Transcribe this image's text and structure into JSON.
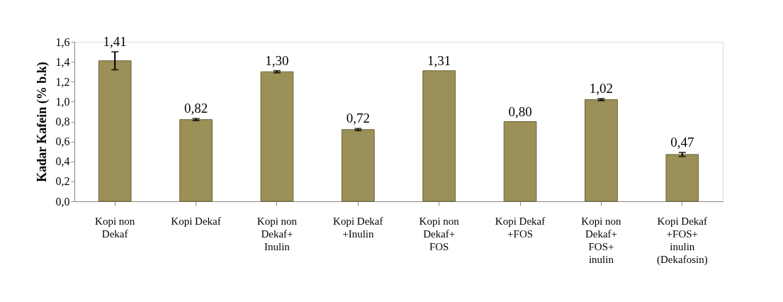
{
  "chart_data": {
    "type": "bar",
    "ylabel": "Kadar Kafein (% b.k)",
    "categories": [
      "Kopi non\nDekaf",
      "Kopi Dekaf",
      "Kopi non\nDekaf+\nInulin",
      "Kopi Dekaf\n+Inulin",
      "Kopi non\nDekaf+\nFOS",
      "Kopi Dekaf\n+FOS",
      "Kopi non\nDekaf+\nFOS+\ninulin",
      "Kopi Dekaf\n+FOS+\ninulin\n(Dekafosin)"
    ],
    "values": [
      1.41,
      0.82,
      1.3,
      0.72,
      1.31,
      0.8,
      1.02,
      0.47
    ],
    "errors": [
      0.09,
      0.01,
      0.01,
      0.01,
      null,
      null,
      0.01,
      0.02
    ],
    "value_labels": [
      "1,41",
      "0,82",
      "1,30",
      "0,72",
      "1,31",
      "0,80",
      "1,02",
      "0,47"
    ],
    "color": "#9b9057",
    "ylim": [
      0,
      1.6
    ],
    "yticks": [
      {
        "value": 0,
        "label": "0,0"
      },
      {
        "value": 0.2,
        "label": "0,2"
      },
      {
        "value": 0.4,
        "label": "0,4"
      },
      {
        "value": 0.6,
        "label": "0,6"
      },
      {
        "value": 0.8,
        "label": "0,8"
      },
      {
        "value": 1.0,
        "label": "1,0"
      },
      {
        "value": 1.2,
        "label": "1,2"
      },
      {
        "value": 1.4,
        "label": "1,4"
      },
      {
        "value": 1.6,
        "label": "1,6"
      }
    ],
    "grid": false
  }
}
